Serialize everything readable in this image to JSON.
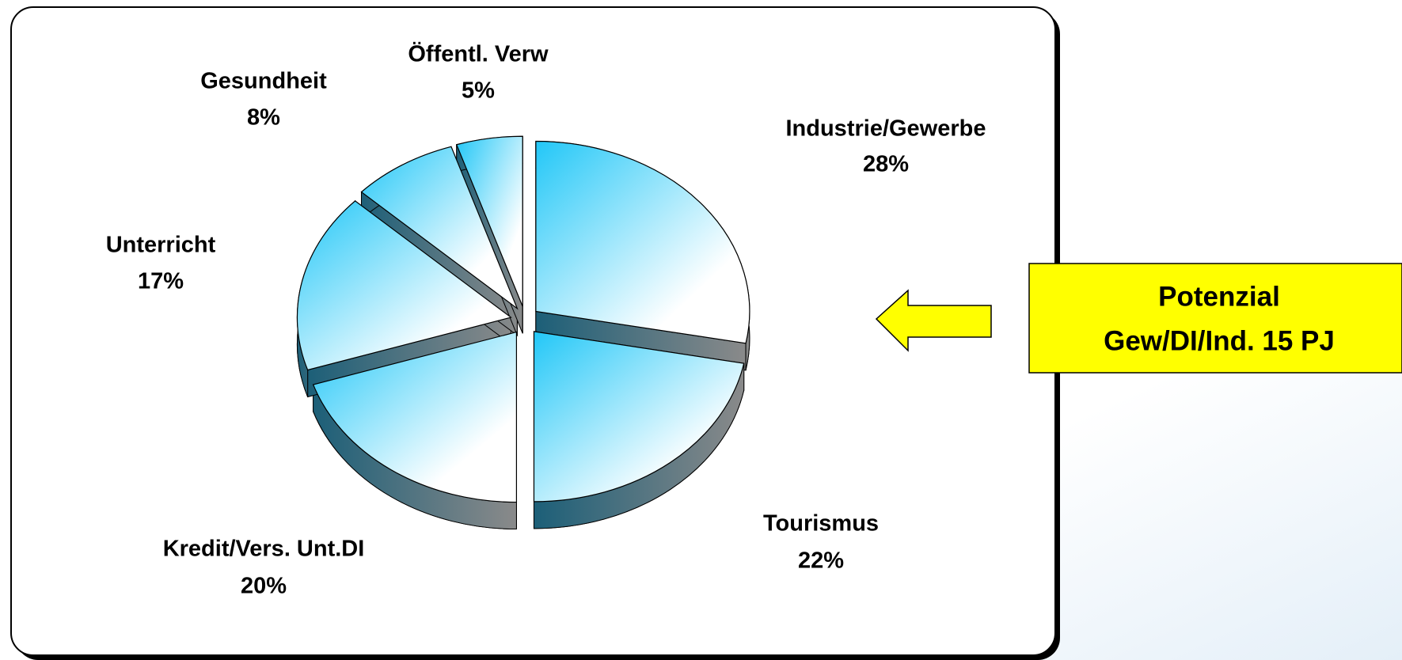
{
  "chart_data": {
    "type": "pie",
    "categories": [
      "Industrie/Gewerbe",
      "Tourismus",
      "Kredit/Vers. Unt.DI",
      "Unterricht",
      "Gesundheit",
      "Öffentl. Verw"
    ],
    "values": [
      28,
      22,
      20,
      17,
      8,
      5
    ],
    "value_labels": [
      "28%",
      "22%",
      "20%",
      "17%",
      "8%",
      "5%"
    ],
    "color": "#22c7f7",
    "annotation": [
      "Potenzial",
      "Gew/DI/Ind. 15 PJ"
    ]
  }
}
